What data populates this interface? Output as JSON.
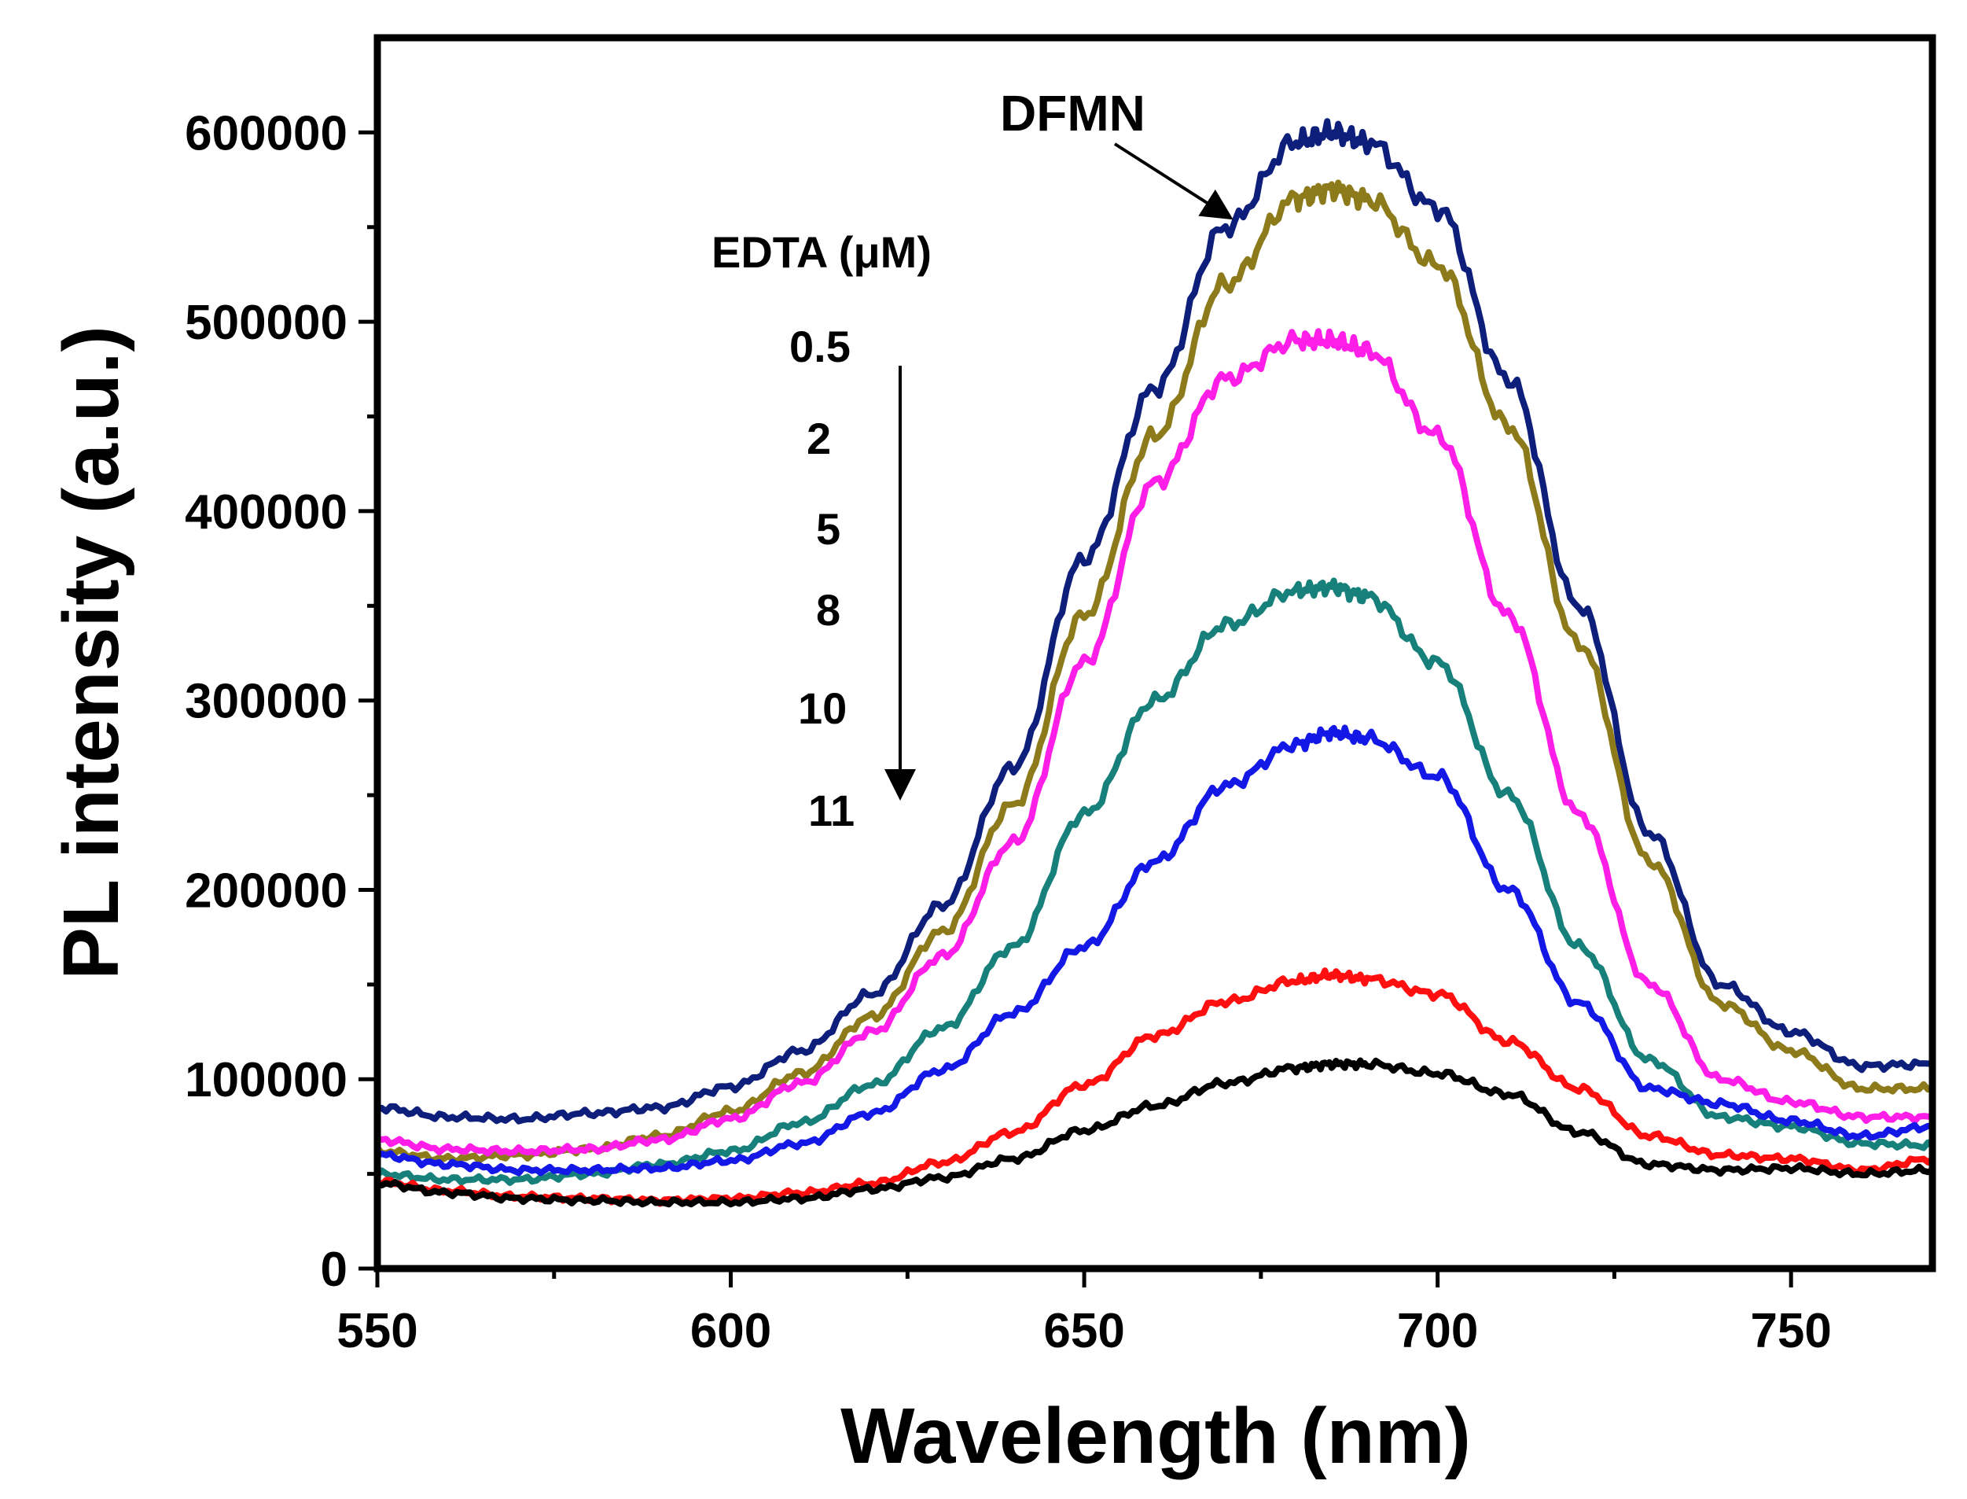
{
  "chart_data": {
    "type": "line",
    "xlabel": "Wavelength (nm)",
    "ylabel": "PL intensity (a.u.)",
    "xlim": [
      550,
      770
    ],
    "ylim": [
      0,
      650000
    ],
    "x_ticks": [
      550,
      600,
      650,
      700,
      750
    ],
    "x_tick_labels": [
      "550",
      "600",
      "650",
      "700",
      "750"
    ],
    "y_ticks": [
      0,
      100000,
      200000,
      300000,
      400000,
      500000,
      600000
    ],
    "y_tick_labels": [
      "0",
      "100000",
      "200000",
      "300000",
      "400000",
      "500000",
      "600000"
    ],
    "grid": false,
    "x": [
      550,
      560,
      570,
      580,
      590,
      600,
      610,
      620,
      630,
      640,
      650,
      660,
      670,
      680,
      685,
      690,
      700,
      710,
      720,
      730,
      740,
      750,
      760,
      770
    ],
    "series": [
      {
        "name": "DFMN",
        "color": "#0d1f7a",
        "values": [
          85000,
          80000,
          79000,
          82000,
          85000,
          96000,
          115000,
          145000,
          192000,
          265000,
          375000,
          465000,
          550000,
          595000,
          600000,
          595000,
          560000,
          470000,
          350000,
          230000,
          150000,
          125000,
          107000,
          108000
        ]
      },
      {
        "name": "0.5",
        "color": "#8c7a1b",
        "values": [
          62000,
          58000,
          60000,
          63000,
          70000,
          83000,
          103000,
          133000,
          178000,
          245000,
          345000,
          440000,
          520000,
          565000,
          570000,
          565000,
          530000,
          445000,
          330000,
          215000,
          140000,
          115000,
          95000,
          95000
        ]
      },
      {
        "name": "2",
        "color": "#ff1ee8",
        "values": [
          68000,
          63000,
          62000,
          63000,
          68000,
          79000,
          98000,
          125000,
          165000,
          225000,
          320000,
          415000,
          470000,
          490000,
          490000,
          485000,
          440000,
          345000,
          240000,
          150000,
          100000,
          88000,
          80000,
          80000
        ]
      },
      {
        "name": "5",
        "color": "#17807a",
        "values": [
          50000,
          47000,
          47000,
          50000,
          55000,
          62000,
          77000,
          97000,
          127000,
          170000,
          240000,
          300000,
          340000,
          358000,
          360000,
          355000,
          320000,
          250000,
          170000,
          110000,
          80000,
          75000,
          66000,
          65000
        ]
      },
      {
        "name": "8",
        "color": "#1418e6",
        "values": [
          60000,
          55000,
          52000,
          52000,
          53000,
          57000,
          66000,
          82000,
          105000,
          135000,
          170000,
          215000,
          255000,
          277000,
          283000,
          280000,
          260000,
          200000,
          140000,
          95000,
          87000,
          78000,
          70000,
          75000
        ]
      },
      {
        "name": "10",
        "color": "#ff0f0f",
        "values": [
          46000,
          41000,
          38000,
          37000,
          36000,
          37000,
          40000,
          45000,
          56000,
          72000,
          97000,
          123000,
          141000,
          152000,
          155000,
          153000,
          145000,
          120000,
          95000,
          70000,
          60000,
          58000,
          52000,
          58000
        ]
      },
      {
        "name": "11",
        "color": "#000000",
        "values": [
          45000,
          40000,
          37000,
          36000,
          35000,
          35000,
          37000,
          42000,
          48000,
          58000,
          73000,
          86000,
          98000,
          106000,
          108000,
          108000,
          103000,
          92000,
          72000,
          55000,
          52000,
          53000,
          50000,
          52000
        ]
      }
    ],
    "annotations": {
      "series_label": "DFMN",
      "legend_title": "EDTA (μM)",
      "concentrations": [
        "0.5",
        "2",
        "5",
        "8",
        "10",
        "11"
      ]
    }
  }
}
